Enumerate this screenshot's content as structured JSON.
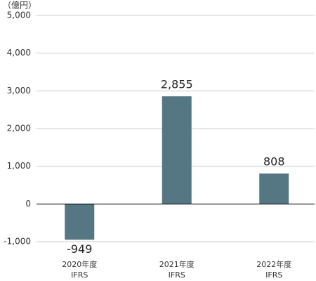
{
  "chart_data": {
    "type": "bar",
    "y_axis_label": "（億円）",
    "categories": [
      [
        "2020年度",
        "IFRS"
      ],
      [
        "2021年度",
        "IFRS"
      ],
      [
        "2022年度",
        "IFRS"
      ]
    ],
    "values": [
      -949,
      2855,
      808
    ],
    "value_labels": [
      "-949",
      "2,855",
      "808"
    ],
    "color": "#557784",
    "ylim": [
      -1000,
      5000
    ],
    "yticks": [
      {
        "value": -1000,
        "label": "-1,000"
      },
      0,
      {
        "value": 1000,
        "label": "1,000"
      },
      {
        "value": 2000,
        "label": "2,000"
      },
      {
        "value": 3000,
        "label": "3,000"
      },
      {
        "value": 4000,
        "label": "4,000"
      },
      {
        "value": 5000,
        "label": "5,000"
      }
    ],
    "grid": true
  }
}
